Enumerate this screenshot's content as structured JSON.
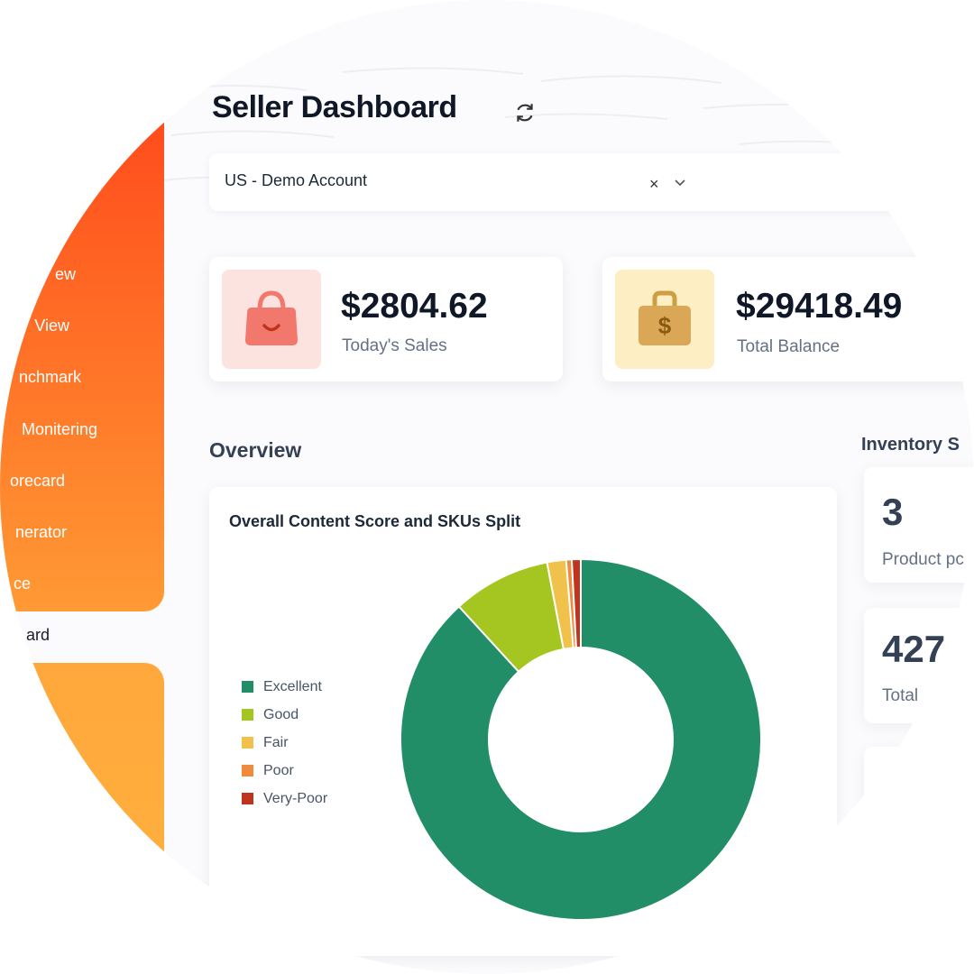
{
  "header": {
    "title": "Seller Dashboard",
    "refresh_icon": "refresh-icon"
  },
  "account_select": {
    "value": "US - Demo Account",
    "clear_symbol": "×",
    "caret_icon": "chevron-down-icon"
  },
  "sidebar": {
    "items": [
      {
        "label": "ew"
      },
      {
        "label": "View"
      },
      {
        "label": "nchmark"
      },
      {
        "label": "Monitering"
      },
      {
        "label": "orecard"
      },
      {
        "label": "nerator"
      },
      {
        "label": "ce"
      }
    ],
    "active_item": {
      "label": "ard"
    }
  },
  "stats": [
    {
      "value": "$2804.62",
      "label": "Today's Sales",
      "icon": "shopping-bag-icon",
      "icon_bg": "#fde3e0",
      "icon_color": "#f2776c"
    },
    {
      "value": "$29418.49",
      "label": "Total Balance",
      "icon": "money-bag-icon",
      "icon_bg": "#fdefc3",
      "icon_color": "#d7a54c"
    }
  ],
  "overview": {
    "section_title": "Overview",
    "chart_title": "Overall Content Score and SKUs Split"
  },
  "chart_data": {
    "type": "pie",
    "categories": [
      "Excellent",
      "Good",
      "Fair",
      "Poor",
      "Very-Poor"
    ],
    "values": [
      88.2,
      8.8,
      1.7,
      0.5,
      0.8
    ],
    "colors": [
      "#218e68",
      "#a5c520",
      "#f0c14b",
      "#f08a3c",
      "#c0341d"
    ],
    "legend_position": "left",
    "donut": true
  },
  "inventory": {
    "section_title": "Inventory S",
    "cards": [
      {
        "value": "3",
        "label": "Product pc"
      },
      {
        "value": "427",
        "label": "Total"
      }
    ]
  }
}
